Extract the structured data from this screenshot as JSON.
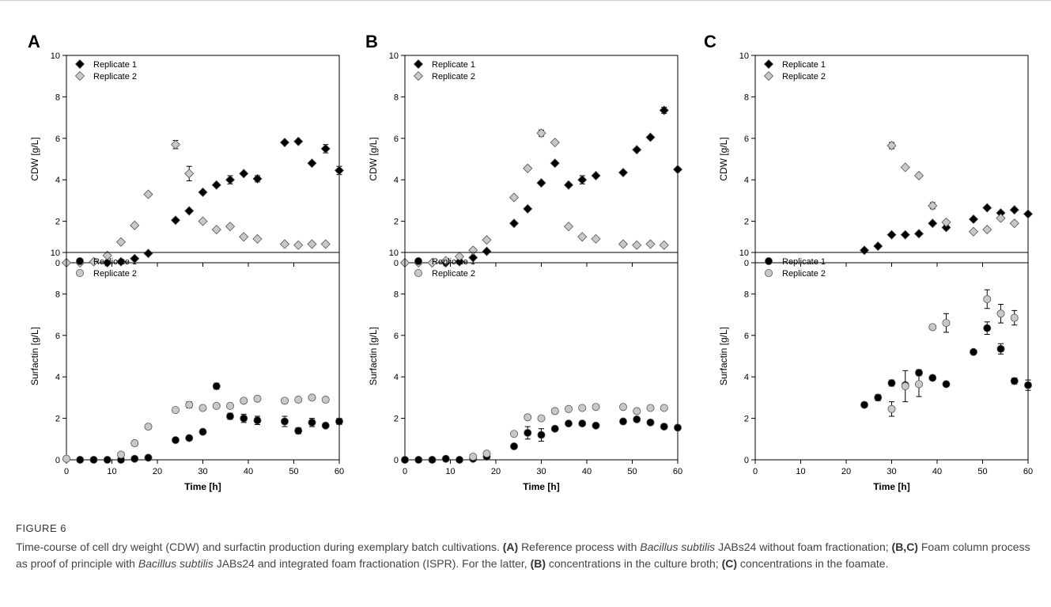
{
  "figure": {
    "label": "FIGURE 6",
    "caption": {
      "intro": "Time-course of cell dry weight (CDW) and surfactin production during exemplary batch cultivations.",
      "a_tag": "(A)",
      "a_text_1": "Reference process with",
      "organism": "Bacillus subtilis",
      "a_text_2": "JABs24 without foam fractionation;",
      "bc_tag": "(B,C)",
      "bc_text_1": "Foam column process as proof of principle with",
      "bc_text_2": "JABs24 and integrated foam fractionation (ISPR). For the latter,",
      "b_tag": "(B)",
      "b_text": "concentrations in the culture broth;",
      "c_tag": "(C)",
      "c_text": "concentrations in the foamate."
    }
  },
  "chart_data": [
    {
      "panel": "A",
      "type": "scatter",
      "xlabel": "",
      "ylabel": "CDW [g/L]",
      "xlim": [
        0,
        60
      ],
      "ylim": [
        0,
        10
      ],
      "marker": "diamond",
      "x_ticks": [
        "0",
        "10",
        "20",
        "30",
        "40",
        "50",
        "60"
      ],
      "y_ticks": [
        "0",
        "2",
        "4",
        "6",
        "8",
        "10"
      ],
      "legend": "top-left",
      "series": [
        {
          "name": "Replicate 1",
          "color": "#000000",
          "x": [
            9,
            12,
            15,
            18,
            24,
            27,
            30,
            33,
            36,
            39,
            42,
            48,
            51,
            54,
            57,
            60
          ],
          "y": [
            0.0,
            0.05,
            0.2,
            0.45,
            2.05,
            2.5,
            3.4,
            3.75,
            4.0,
            4.3,
            4.05,
            5.8,
            5.85,
            4.8,
            5.5,
            4.45
          ],
          "err": [
            0,
            0,
            0,
            0,
            0,
            0,
            0,
            0,
            0.2,
            0,
            0.15,
            0,
            0,
            0,
            0.2,
            0.2
          ]
        },
        {
          "name": "Replicate 2",
          "color": "#c8c8c8",
          "x": [
            0,
            3,
            6,
            9,
            12,
            15,
            18,
            24,
            27,
            30,
            33,
            36,
            39,
            42,
            48,
            51,
            54,
            57
          ],
          "y": [
            0.0,
            0.0,
            0.05,
            0.35,
            1.0,
            1.8,
            3.3,
            5.7,
            4.3,
            2.0,
            1.6,
            1.75,
            1.25,
            1.15,
            0.9,
            0.85,
            0.9,
            0.9
          ],
          "err": [
            0,
            0,
            0,
            0,
            0,
            0,
            0,
            0.2,
            0.35,
            0,
            0,
            0,
            0,
            0,
            0,
            0,
            0,
            0
          ]
        }
      ]
    },
    {
      "panel": "A",
      "type": "scatter",
      "xlabel": "Time [h]",
      "ylabel": "Surfactin [g/L]",
      "xlim": [
        0,
        60
      ],
      "ylim": [
        0,
        10
      ],
      "marker": "circle",
      "x_ticks": [
        "0",
        "10",
        "20",
        "30",
        "40",
        "50",
        "60"
      ],
      "y_ticks": [
        "0",
        "2",
        "4",
        "6",
        "8",
        "10"
      ],
      "legend": "top-left",
      "series": [
        {
          "name": "Replicate 1",
          "color": "#000000",
          "x": [
            3,
            6,
            9,
            12,
            15,
            18,
            24,
            27,
            30,
            33,
            36,
            39,
            42,
            48,
            51,
            54,
            57,
            60
          ],
          "y": [
            0.0,
            0.0,
            0.0,
            0.0,
            0.05,
            0.1,
            0.95,
            1.05,
            1.35,
            3.55,
            2.1,
            2.0,
            1.9,
            1.85,
            1.4,
            1.8,
            1.65,
            1.85
          ],
          "err": [
            0,
            0,
            0,
            0,
            0,
            0,
            0,
            0,
            0,
            0.15,
            0.15,
            0.2,
            0.2,
            0.25,
            0.15,
            0.2,
            0,
            0.15
          ]
        },
        {
          "name": "Replicate 2",
          "color": "#c8c8c8",
          "x": [
            0,
            12,
            15,
            18,
            24,
            27,
            30,
            33,
            36,
            39,
            42,
            48,
            51,
            54,
            57
          ],
          "y": [
            0.05,
            0.25,
            0.8,
            1.6,
            2.4,
            2.65,
            2.5,
            2.6,
            2.6,
            2.85,
            2.95,
            2.85,
            2.9,
            3.0,
            2.9
          ],
          "err": [
            0,
            0,
            0,
            0,
            0,
            0.15,
            0,
            0,
            0,
            0,
            0,
            0,
            0,
            0,
            0
          ]
        }
      ]
    },
    {
      "panel": "B",
      "type": "scatter",
      "xlabel": "",
      "ylabel": "CDW [g/L]",
      "xlim": [
        0,
        60
      ],
      "ylim": [
        0,
        10
      ],
      "marker": "diamond",
      "x_ticks": [
        "0",
        "10",
        "20",
        "30",
        "40",
        "50",
        "60"
      ],
      "y_ticks": [
        "0",
        "2",
        "4",
        "6",
        "8",
        "10"
      ],
      "legend": "top-left",
      "series": [
        {
          "name": "Replicate 1",
          "color": "#000000",
          "x": [
            9,
            12,
            15,
            18,
            24,
            27,
            30,
            33,
            36,
            39,
            42,
            48,
            51,
            54,
            57,
            60
          ],
          "y": [
            0.0,
            0.05,
            0.25,
            0.55,
            1.9,
            2.6,
            3.85,
            4.8,
            3.75,
            4.0,
            4.2,
            4.35,
            5.45,
            6.05,
            7.35,
            4.5
          ],
          "err": [
            0,
            0,
            0,
            0,
            0,
            0,
            0,
            0,
            0,
            0.2,
            0,
            0,
            0,
            0,
            0.15,
            0
          ]
        },
        {
          "name": "Replicate 2",
          "color": "#c8c8c8",
          "x": [
            0,
            3,
            6,
            9,
            12,
            15,
            18,
            24,
            27,
            30,
            33,
            36,
            39,
            42,
            48,
            51,
            54,
            57
          ],
          "y": [
            0.0,
            0.0,
            0.0,
            0.1,
            0.3,
            0.6,
            1.1,
            3.15,
            4.55,
            6.25,
            5.8,
            1.75,
            1.25,
            1.15,
            0.9,
            0.85,
            0.9,
            0.85
          ],
          "err": [
            0,
            0,
            0,
            0,
            0,
            0,
            0,
            0,
            0,
            0.15,
            0,
            0,
            0,
            0,
            0,
            0,
            0,
            0
          ]
        }
      ]
    },
    {
      "panel": "B",
      "type": "scatter",
      "xlabel": "Time [h]",
      "ylabel": "Surfactin [g/L]",
      "xlim": [
        0,
        60
      ],
      "ylim": [
        0,
        10
      ],
      "marker": "circle",
      "x_ticks": [
        "0",
        "10",
        "20",
        "30",
        "40",
        "50",
        "60"
      ],
      "y_ticks": [
        "0",
        "2",
        "4",
        "6",
        "8",
        "10"
      ],
      "legend": "top-left",
      "series": [
        {
          "name": "Replicate 1",
          "color": "#000000",
          "x": [
            0,
            3,
            6,
            9,
            12,
            15,
            18,
            24,
            27,
            30,
            33,
            36,
            39,
            42,
            48,
            51,
            54,
            57,
            60
          ],
          "y": [
            0.0,
            0.0,
            0.0,
            0.05,
            0.0,
            0.05,
            0.15,
            0.65,
            1.3,
            1.2,
            1.5,
            1.75,
            1.75,
            1.65,
            1.85,
            1.95,
            1.8,
            1.6,
            1.55
          ],
          "err": [
            0,
            0,
            0,
            0,
            0,
            0,
            0,
            0,
            0.3,
            0.3,
            0,
            0,
            0,
            0,
            0,
            0,
            0,
            0,
            0
          ]
        },
        {
          "name": "Replicate 2",
          "color": "#c8c8c8",
          "x": [
            15,
            18,
            24,
            27,
            30,
            33,
            36,
            39,
            42,
            48,
            51,
            54,
            57
          ],
          "y": [
            0.15,
            0.3,
            1.25,
            2.05,
            2.0,
            2.35,
            2.45,
            2.5,
            2.55,
            2.55,
            2.35,
            2.5,
            2.5
          ],
          "err": [
            0,
            0,
            0,
            0,
            0,
            0,
            0,
            0,
            0,
            0,
            0,
            0,
            0
          ]
        }
      ]
    },
    {
      "panel": "C",
      "type": "scatter",
      "xlabel": "",
      "ylabel": "CDW [g/L]",
      "xlim": [
        0,
        60
      ],
      "ylim": [
        0,
        10
      ],
      "marker": "diamond",
      "x_ticks": [
        "0",
        "10",
        "20",
        "30",
        "40",
        "50",
        "60"
      ],
      "y_ticks": [
        "0",
        "2",
        "4",
        "6",
        "8",
        "10"
      ],
      "legend": "top-left",
      "series": [
        {
          "name": "Replicate 1",
          "color": "#000000",
          "x": [
            24,
            27,
            30,
            33,
            36,
            39,
            42,
            48,
            51,
            54,
            57,
            60
          ],
          "y": [
            0.6,
            0.8,
            1.35,
            1.35,
            1.4,
            1.9,
            1.7,
            2.1,
            2.65,
            2.4,
            2.55,
            2.35
          ],
          "err": [
            0,
            0,
            0,
            0,
            0,
            0,
            0.1,
            0,
            0,
            0,
            0,
            0
          ]
        },
        {
          "name": "Replicate 2",
          "color": "#c8c8c8",
          "x": [
            30,
            33,
            36,
            39,
            42,
            48,
            51,
            54,
            57
          ],
          "y": [
            5.65,
            4.6,
            4.2,
            2.75,
            1.95,
            1.5,
            1.6,
            2.15,
            1.9
          ],
          "err": [
            0.15,
            0,
            0,
            0.15,
            0,
            0,
            0,
            0,
            0
          ]
        }
      ]
    },
    {
      "panel": "C",
      "type": "scatter",
      "xlabel": "Time [h]",
      "ylabel": "Surfactin [g/L]",
      "xlim": [
        0,
        60
      ],
      "ylim": [
        0,
        10
      ],
      "marker": "circle",
      "x_ticks": [
        "0",
        "10",
        "20",
        "30",
        "40",
        "50",
        "60"
      ],
      "y_ticks": [
        "0",
        "2",
        "4",
        "6",
        "8",
        "10"
      ],
      "legend": "top-left",
      "series": [
        {
          "name": "Replicate 1",
          "color": "#000000",
          "x": [
            24,
            27,
            30,
            33,
            36,
            39,
            42,
            48,
            51,
            54,
            57,
            60
          ],
          "y": [
            2.65,
            3.0,
            3.7,
            3.6,
            4.2,
            3.95,
            3.65,
            5.2,
            6.35,
            5.35,
            3.8,
            3.6
          ],
          "err": [
            0,
            0.15,
            0.15,
            0,
            0.15,
            0,
            0.1,
            0.1,
            0.3,
            0.25,
            0.15,
            0.25
          ]
        },
        {
          "name": "Replicate 2",
          "color": "#c8c8c8",
          "x": [
            30,
            33,
            36,
            39,
            42,
            51,
            54,
            57
          ],
          "y": [
            2.45,
            3.55,
            3.65,
            6.4,
            6.6,
            7.75,
            7.05,
            6.85
          ],
          "err": [
            0.35,
            0.75,
            0.6,
            0,
            0.45,
            0.45,
            0.45,
            0.35
          ]
        }
      ]
    }
  ],
  "panel_labels": [
    "A",
    "B",
    "C"
  ]
}
